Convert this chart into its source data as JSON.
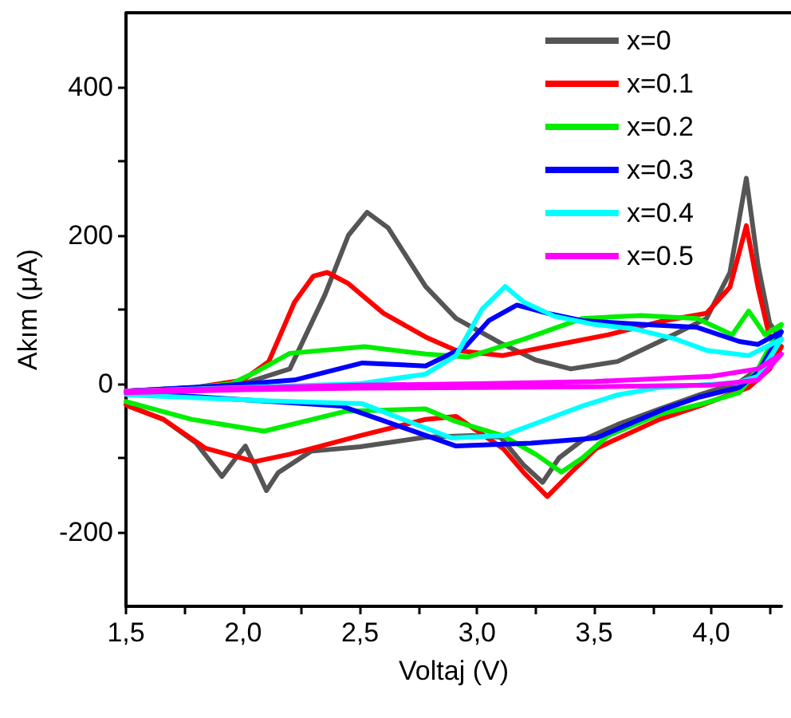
{
  "chart_data": {
    "type": "line",
    "xlabel": "Voltaj (V)",
    "ylabel": "Akım (μA)",
    "xlim": [
      1.5,
      4.3
    ],
    "ylim": [
      -300,
      500
    ],
    "xticks": [
      {
        "value": 1.5,
        "label": "1,5"
      },
      {
        "value": 1.75,
        "label": null
      },
      {
        "value": 2.0,
        "label": "2,0"
      },
      {
        "value": 2.25,
        "label": null
      },
      {
        "value": 2.5,
        "label": "2,5"
      },
      {
        "value": 2.75,
        "label": null
      },
      {
        "value": 3.0,
        "label": "3,0"
      },
      {
        "value": 3.25,
        "label": null
      },
      {
        "value": 3.5,
        "label": "3,5"
      },
      {
        "value": 3.75,
        "label": null
      },
      {
        "value": 4.0,
        "label": "4,0"
      },
      {
        "value": 4.25,
        "label": null
      }
    ],
    "yticks": [
      -200,
      {
        "value": -100,
        "label": null
      },
      0,
      {
        "value": 100,
        "label": null
      },
      200,
      {
        "value": 300,
        "label": null
      },
      400
    ],
    "grid": false,
    "legend": "top right",
    "marker": "none",
    "line_style": "solid",
    "series": [
      {
        "name": "x=0",
        "color": "#555555",
        "x": [
          1.5,
          1.8,
          2.0,
          2.2,
          2.35,
          2.45,
          2.53,
          2.62,
          2.78,
          2.91,
          3.1,
          3.25,
          3.4,
          3.6,
          3.8,
          3.98,
          4.08,
          4.15,
          4.2,
          4.25,
          4.3,
          4.2,
          4.12,
          3.95,
          3.78,
          3.6,
          3.45,
          3.35,
          3.28,
          3.2,
          3.1,
          2.98,
          2.78,
          2.5,
          2.29,
          2.15,
          2.1,
          2.05,
          2.01,
          1.97,
          1.91,
          1.8,
          1.66,
          1.51,
          1.5
        ],
        "values": [
          -10,
          -5,
          0,
          20,
          120,
          200,
          231,
          210,
          131,
          88,
          55,
          32,
          20,
          30,
          60,
          88,
          150,
          277,
          160,
          81,
          60,
          20,
          2,
          -15,
          -34,
          -55,
          -76,
          -100,
          -133,
          -110,
          -72,
          -70,
          -72,
          -85,
          -91,
          -120,
          -144,
          -110,
          -84,
          -100,
          -125,
          -80,
          -48,
          -30,
          -28
        ]
      },
      {
        "name": "x=0.1",
        "color": "#ff0000",
        "x": [
          1.5,
          1.8,
          2.0,
          2.11,
          2.22,
          2.3,
          2.36,
          2.45,
          2.6,
          2.78,
          2.91,
          3.11,
          3.3,
          3.56,
          3.8,
          3.98,
          4.08,
          4.15,
          4.2,
          4.25,
          4.3,
          4.25,
          4.16,
          3.95,
          3.78,
          3.51,
          3.4,
          3.3,
          3.2,
          3.11,
          2.91,
          2.78,
          2.5,
          2.2,
          2.05,
          1.84,
          1.66,
          1.51,
          1.5
        ],
        "values": [
          -10,
          -5,
          5,
          30,
          110,
          145,
          150,
          135,
          95,
          63,
          45,
          38,
          50,
          66,
          85,
          95,
          130,
          213,
          130,
          62,
          50,
          20,
          -5,
          -30,
          -48,
          -87,
          -120,
          -152,
          -120,
          -87,
          -44,
          -48,
          -70,
          -95,
          -105,
          -87,
          -48,
          -30,
          -28
        ]
      },
      {
        "name": "x=0.2",
        "color": "#00ee00",
        "x": [
          1.5,
          1.8,
          1.95,
          2.05,
          2.2,
          2.52,
          2.78,
          2.96,
          3.2,
          3.45,
          3.7,
          3.94,
          4.09,
          4.16,
          4.23,
          4.3,
          4.2,
          4.12,
          3.95,
          3.78,
          3.56,
          3.45,
          3.36,
          3.25,
          3.11,
          2.91,
          2.78,
          2.44,
          2.09,
          1.78,
          1.51,
          1.5
        ],
        "values": [
          -10,
          -5,
          0,
          15,
          41,
          50,
          40,
          36,
          60,
          88,
          92,
          88,
          66,
          98,
          66,
          80,
          20,
          -12,
          -28,
          -41,
          -70,
          -100,
          -119,
          -95,
          -70,
          -51,
          -34,
          -37,
          -64,
          -48,
          -25,
          -24
        ]
      },
      {
        "name": "x=0.3",
        "color": "#0000ff",
        "x": [
          1.5,
          1.9,
          2.22,
          2.51,
          2.78,
          2.95,
          3.05,
          3.17,
          3.3,
          3.45,
          3.7,
          3.94,
          4.12,
          4.2,
          4.3,
          4.2,
          4.12,
          3.95,
          3.8,
          3.51,
          3.23,
          2.91,
          2.42,
          1.88,
          1.51,
          1.5
        ],
        "values": [
          -10,
          -3,
          5,
          28,
          24,
          50,
          85,
          106,
          95,
          85,
          80,
          76,
          57,
          53,
          70,
          15,
          -5,
          -18,
          -34,
          -73,
          -80,
          -84,
          -30,
          -19,
          -12,
          -12
        ]
      },
      {
        "name": "x=0.4",
        "color": "#00ffff",
        "x": [
          1.5,
          2.0,
          2.5,
          2.78,
          2.91,
          3.02,
          3.12,
          3.2,
          3.33,
          3.5,
          3.67,
          3.85,
          3.98,
          4.16,
          4.3,
          4.2,
          4.12,
          3.95,
          3.78,
          3.6,
          3.45,
          3.28,
          3.11,
          2.89,
          2.51,
          2.11,
          1.51,
          1.5
        ],
        "values": [
          -10,
          -5,
          0,
          13,
          38,
          100,
          131,
          110,
          91,
          80,
          74,
          60,
          45,
          38,
          60,
          10,
          2,
          -2,
          -5,
          -15,
          -30,
          -50,
          -70,
          -73,
          -27,
          -23,
          -15,
          -14
        ]
      },
      {
        "name": "x=0.5",
        "color": "#ff00ff",
        "x": [
          1.5,
          2.0,
          2.5,
          3.0,
          3.5,
          4.0,
          4.2,
          4.3,
          4.2,
          4.0,
          3.5,
          3.0,
          2.5,
          2.0,
          1.5
        ],
        "values": [
          -10,
          -6,
          -2,
          0,
          3,
          10,
          20,
          40,
          5,
          -2,
          -4,
          -5,
          -6,
          -8,
          -12
        ]
      }
    ]
  }
}
